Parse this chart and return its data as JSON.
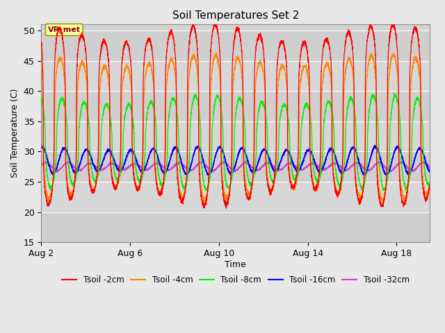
{
  "title": "Soil Temperatures Set 2",
  "xlabel": "Time",
  "ylabel": "Soil Temperature (C)",
  "ylim": [
    15,
    51
  ],
  "yticks": [
    15,
    20,
    25,
    30,
    35,
    40,
    45,
    50
  ],
  "xlim_days": [
    0,
    17.5
  ],
  "xtick_positions": [
    0,
    4,
    8,
    12,
    16
  ],
  "xtick_labels": [
    "Aug 2",
    "Aug 6",
    "Aug 10",
    "Aug 14",
    "Aug 18"
  ],
  "colors": {
    "Tsoil -2cm": "#ff0000",
    "Tsoil -4cm": "#ff8800",
    "Tsoil -8cm": "#00ee00",
    "Tsoil -16cm": "#0000ff",
    "Tsoil -32cm": "#cc44cc"
  },
  "annotation_text": "VR_met",
  "background_color": "#e8e8e8",
  "plot_bg_color": "#d4d4d4",
  "n_days": 17.5,
  "points_per_day": 240
}
